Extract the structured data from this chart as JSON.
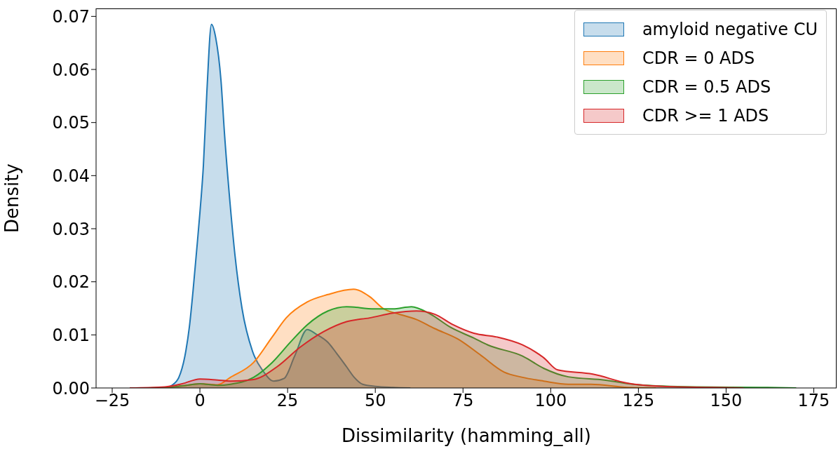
{
  "chart_data": {
    "type": "area",
    "xlabel": "Dissimilarity (hamming_all)",
    "ylabel": "Density",
    "xlim": [
      -29.6,
      181.5
    ],
    "ylim": [
      0,
      0.0715
    ],
    "xticks": [
      {
        "value": -25,
        "label": "−25"
      },
      0,
      25,
      50,
      75,
      100,
      125,
      150,
      175
    ],
    "yticks": [
      {
        "value": 0,
        "label": "0.00"
      },
      {
        "value": 0.01,
        "label": "0.01"
      },
      {
        "value": 0.02,
        "label": "0.02"
      },
      {
        "value": 0.03,
        "label": "0.03"
      },
      {
        "value": 0.04,
        "label": "0.04"
      },
      {
        "value": 0.05,
        "label": "0.05"
      },
      {
        "value": 0.06,
        "label": "0.06"
      },
      {
        "value": 0.07,
        "label": "0.07"
      }
    ],
    "grid": false,
    "legend": "top right",
    "series": [
      {
        "name": "amyloid negative CU",
        "color": "#1f77b4",
        "x": [
          -10,
          -8,
          -6,
          -4,
          -3,
          -2,
          -1,
          0,
          1,
          2,
          3.3,
          4.5,
          6,
          7,
          8.7,
          10,
          12,
          15,
          18,
          21,
          24,
          27,
          30.6,
          33,
          36.5,
          39,
          41.8,
          44,
          46.4,
          50,
          55,
          60
        ],
        "values": [
          0,
          0.0005,
          0.002,
          0.007,
          0.0115,
          0.018,
          0.0254,
          0.033,
          0.042,
          0.056,
          0.0685,
          0.066,
          0.058,
          0.048,
          0.034,
          0.025,
          0.015,
          0.0069,
          0.0032,
          0.0013,
          0.0018,
          0.006,
          0.011,
          0.0102,
          0.0086,
          0.0065,
          0.004,
          0.002,
          0.0007,
          0.0003,
          0.0001,
          0
        ]
      },
      {
        "name": "CDR = 0 ADS",
        "color": "#ff7f0e",
        "x": [
          -15,
          -10,
          -5,
          0,
          5,
          8.7,
          15.3,
          20.6,
          24.6,
          30.6,
          36.5,
          43.8,
          48.4,
          52.4,
          56.3,
          61.7,
          66.9,
          73.6,
          80.2,
          86.7,
          92,
          98,
          105,
          111.5,
          122,
          130
        ],
        "values": [
          0,
          0.0001,
          0.0004,
          0.0008,
          0.0006,
          0.002,
          0.0048,
          0.0096,
          0.0132,
          0.0162,
          0.0176,
          0.0186,
          0.0172,
          0.0149,
          0.014,
          0.0129,
          0.0112,
          0.0092,
          0.0061,
          0.003,
          0.002,
          0.0013,
          0.0007,
          0.0007,
          0.0001,
          0
        ]
      },
      {
        "name": "CDR = 0.5 ADS",
        "color": "#2ca02c",
        "x": [
          -15,
          -10,
          -5,
          0,
          5,
          8.7,
          15.3,
          20.6,
          25.9,
          30.6,
          36.5,
          41.8,
          49.7,
          55,
          60.3,
          65.5,
          71.5,
          78.1,
          82.1,
          92,
          98,
          105,
          115.3,
          125,
          141,
          160,
          170
        ],
        "values": [
          0,
          0.0001,
          0.0004,
          0.0008,
          0.0005,
          0.0007,
          0.002,
          0.0048,
          0.0087,
          0.0119,
          0.0145,
          0.0153,
          0.0149,
          0.0149,
          0.0153,
          0.014,
          0.0114,
          0.0094,
          0.0081,
          0.006,
          0.0037,
          0.0021,
          0.0015,
          0.0006,
          0.0002,
          0.0001,
          0
        ]
      },
      {
        "name": "CDR >= 1 ADS",
        "color": "#d62728",
        "x": [
          -20,
          -10,
          -5,
          0,
          5,
          8.7,
          15.3,
          22,
          28.6,
          35.2,
          41.8,
          48.4,
          55,
          61.7,
          66.9,
          72.2,
          78.1,
          84.7,
          92,
          98,
          102,
          112,
          122,
          132,
          145,
          155
        ],
        "values": [
          0,
          0.0002,
          0.0008,
          0.0017,
          0.0015,
          0.0013,
          0.0016,
          0.004,
          0.0077,
          0.0106,
          0.0125,
          0.0132,
          0.0141,
          0.0145,
          0.0139,
          0.0119,
          0.0103,
          0.0096,
          0.0081,
          0.0057,
          0.0034,
          0.0026,
          0.0009,
          0.0003,
          0.0001,
          0
        ]
      }
    ]
  }
}
